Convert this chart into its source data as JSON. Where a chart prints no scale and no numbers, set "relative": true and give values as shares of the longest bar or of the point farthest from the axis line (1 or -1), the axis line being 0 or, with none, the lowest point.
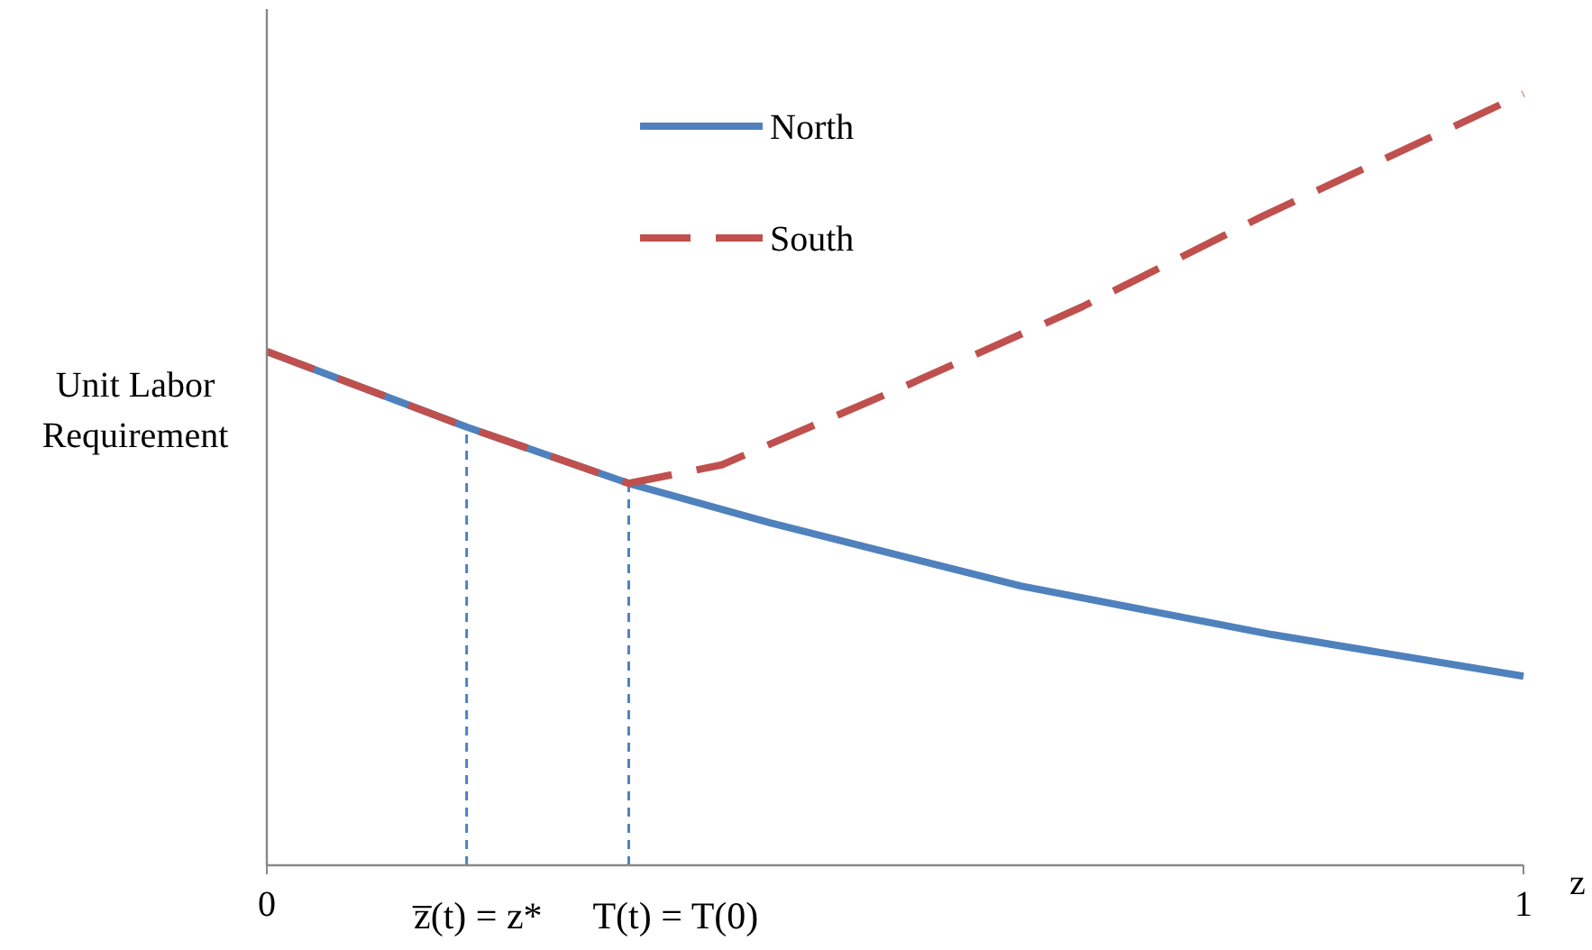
{
  "chart_data": {
    "type": "line",
    "relative": true,
    "xlabel": "z",
    "ylabel": "Unit Labor Requirement",
    "xlim": [
      0,
      1
    ],
    "xticks": [
      0,
      1
    ],
    "legend": "top",
    "grid": false,
    "series": [
      {
        "name": "North",
        "color": "#4f81bd",
        "line_style": "solid",
        "x": [
          0,
          0.159,
          0.288,
          0.4,
          0.6,
          0.8,
          1
        ],
        "values": [
          0.666,
          0.568,
          0.495,
          0.444,
          0.362,
          0.299,
          0.245
        ]
      },
      {
        "name": "South",
        "color": "#c0504d",
        "line_style": "dashed",
        "x": [
          0,
          0.159,
          0.288,
          0.362,
          0.505,
          0.649,
          0.792,
          1
        ],
        "values": [
          0.666,
          0.568,
          0.495,
          0.519,
          0.619,
          0.724,
          0.841,
          1
        ]
      }
    ],
    "ref_lines": [
      {
        "axis": "x",
        "value": 0.159,
        "label": "z̅(t) = z*",
        "color": "#4f81bd",
        "line_style": "dashed"
      },
      {
        "axis": "x",
        "value": 0.288,
        "label": "T(t) = T(0)",
        "color": "#4f81bd",
        "line_style": "dashed"
      }
    ]
  }
}
